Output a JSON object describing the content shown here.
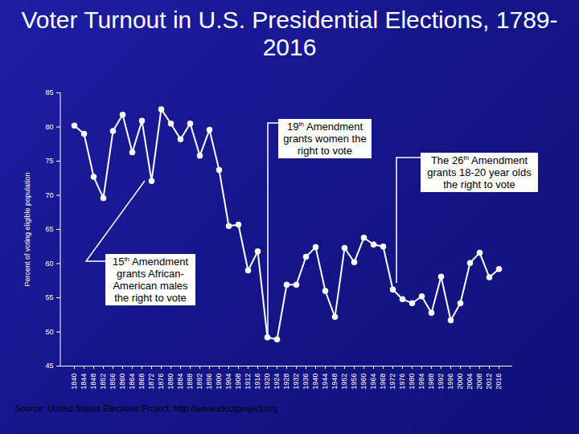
{
  "chart_data": {
    "type": "line",
    "title": "Voter Turnout in U.S. Presidential Elections, 1789-2016",
    "y_label": "Percent of voting eligible population",
    "categories": [
      "1840",
      "1844",
      "1848",
      "1852",
      "1856",
      "1860",
      "1864",
      "1868",
      "1872",
      "1876",
      "1880",
      "1884",
      "1888",
      "1892",
      "1896",
      "1900",
      "1904",
      "1908",
      "1912",
      "1916",
      "1920",
      "1924",
      "1928",
      "1932",
      "1936",
      "1940",
      "1944",
      "1948",
      "1952",
      "1956",
      "1960",
      "1964",
      "1968",
      "1972",
      "1976",
      "1980",
      "1984",
      "1988",
      "1992",
      "1996",
      "2000",
      "2004",
      "2008",
      "2012",
      "2016"
    ],
    "values": [
      80.2,
      79.0,
      72.7,
      69.6,
      79.4,
      81.8,
      76.3,
      80.9,
      72.1,
      82.6,
      80.5,
      78.2,
      80.5,
      75.8,
      79.6,
      73.7,
      65.5,
      65.7,
      59.0,
      61.8,
      49.2,
      48.9,
      56.9,
      56.9,
      61.0,
      62.4,
      56.0,
      52.2,
      62.3,
      60.2,
      63.8,
      62.8,
      62.5,
      56.2,
      54.8,
      54.2,
      55.2,
      52.8,
      58.1,
      51.7,
      54.2,
      60.1,
      61.6,
      58.0,
      59.2
    ],
    "color": "#ffffff",
    "marker": "circle",
    "grid": false,
    "ylim": [
      45,
      85
    ],
    "yticks": [
      45,
      50,
      55,
      60,
      65,
      70,
      75,
      80,
      85
    ],
    "annotations": [
      "19th Amendment grants women the right to vote",
      "The 26th Amendment grants 18-20 year olds the right to vote",
      "15th Amendment grants African-American males the right to vote"
    ],
    "source": "Source: United States Elections Project. http://www.electproject.org"
  }
}
